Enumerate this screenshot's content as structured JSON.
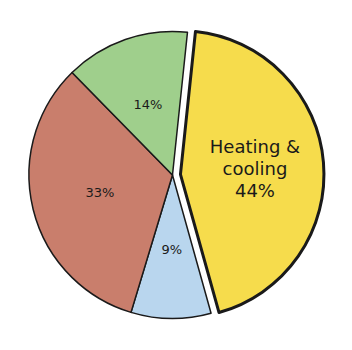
{
  "chart_data": {
    "type": "pie",
    "categories": [
      "Heating & cooling",
      null,
      null,
      null
    ],
    "values": [
      44,
      9,
      33,
      14
    ],
    "value_labels": [
      "44%",
      "9%",
      "33%",
      "14%"
    ],
    "colors": [
      "#f6dc4c",
      "#b9d6ee",
      "#c97e6c",
      "#9fcf8c"
    ],
    "data_labels": true
  }
}
